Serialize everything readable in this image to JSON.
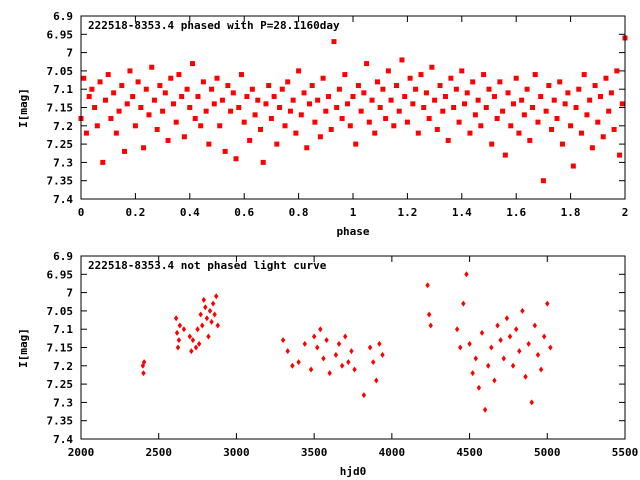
{
  "chart_data": [
    {
      "type": "scatter",
      "title": "222518-8353.4 phased with P=28.1160day",
      "xlabel": "phase",
      "ylabel": "I[mag]",
      "xlim": [
        0,
        2
      ],
      "ylim": [
        6.9,
        7.4
      ],
      "y_inverted": true,
      "xticks": [
        "0",
        "0.2",
        "0.4",
        "0.6",
        "0.8",
        "1",
        "1.2",
        "1.4",
        "1.6",
        "1.8",
        "2"
      ],
      "yticks": [
        "6.9",
        "6.95",
        "7",
        "7.05",
        "7.1",
        "7.15",
        "7.2",
        "7.25",
        "7.3",
        "7.35",
        "7.4"
      ],
      "marker": "filled-square",
      "color": "#ff0000",
      "series": [
        {
          "x": [
            0.0,
            0.01,
            0.02,
            0.03,
            0.04,
            0.05,
            0.06,
            0.07,
            0.08,
            0.09,
            0.1,
            0.11,
            0.12,
            0.13,
            0.14,
            0.15,
            0.16,
            0.17,
            0.18,
            0.19,
            0.2,
            0.21,
            0.22,
            0.23,
            0.24,
            0.25,
            0.26,
            0.27,
            0.28,
            0.29,
            0.3,
            0.31,
            0.32,
            0.33,
            0.34,
            0.35,
            0.36,
            0.37,
            0.38,
            0.39,
            0.4,
            0.41,
            0.42,
            0.43,
            0.44,
            0.45,
            0.46,
            0.47,
            0.48,
            0.49,
            0.5,
            0.51,
            0.52,
            0.53,
            0.54,
            0.55,
            0.56,
            0.57,
            0.58,
            0.59,
            0.6,
            0.61,
            0.62,
            0.63,
            0.64,
            0.65,
            0.66,
            0.67,
            0.68,
            0.69,
            0.7,
            0.71,
            0.72,
            0.73,
            0.74,
            0.75,
            0.76,
            0.77,
            0.78,
            0.79,
            0.8,
            0.81,
            0.82,
            0.83,
            0.84,
            0.85,
            0.86,
            0.87,
            0.88,
            0.89,
            0.9,
            0.91,
            0.92,
            0.93,
            0.94,
            0.95,
            0.96,
            0.97,
            0.98,
            0.99,
            1.0,
            1.01,
            1.02,
            1.03,
            1.04,
            1.05,
            1.06,
            1.07,
            1.08,
            1.09,
            1.1,
            1.11,
            1.12,
            1.13,
            1.14,
            1.15,
            1.16,
            1.17,
            1.18,
            1.19,
            1.2,
            1.21,
            1.22,
            1.23,
            1.24,
            1.25,
            1.26,
            1.27,
            1.28,
            1.29,
            1.3,
            1.31,
            1.32,
            1.33,
            1.34,
            1.35,
            1.36,
            1.37,
            1.38,
            1.39,
            1.4,
            1.41,
            1.42,
            1.43,
            1.44,
            1.45,
            1.46,
            1.47,
            1.48,
            1.49,
            1.5,
            1.51,
            1.52,
            1.53,
            1.54,
            1.55,
            1.56,
            1.57,
            1.58,
            1.59,
            1.6,
            1.61,
            1.62,
            1.63,
            1.64,
            1.65,
            1.66,
            1.67,
            1.68,
            1.69,
            1.7,
            1.71,
            1.72,
            1.73,
            1.74,
            1.75,
            1.76,
            1.77,
            1.78,
            1.79,
            1.8,
            1.81,
            1.82,
            1.83,
            1.84,
            1.85,
            1.86,
            1.87,
            1.88,
            1.89,
            1.9,
            1.91,
            1.92,
            1.93,
            1.94,
            1.95,
            1.96,
            1.97,
            1.98,
            1.99,
            2.0
          ],
          "y": [
            7.18,
            7.07,
            7.22,
            7.12,
            7.1,
            7.15,
            7.2,
            7.08,
            7.3,
            7.13,
            7.06,
            7.18,
            7.11,
            7.22,
            7.16,
            7.09,
            7.27,
            7.14,
            7.05,
            7.12,
            7.2,
            7.08,
            7.15,
            7.26,
            7.1,
            7.17,
            7.04,
            7.13,
            7.21,
            7.09,
            7.16,
            7.11,
            7.24,
            7.07,
            7.14,
            7.19,
            7.06,
            7.12,
            7.23,
            7.1,
            7.15,
            7.03,
            7.18,
            7.12,
            7.2,
            7.08,
            7.16,
            7.25,
            7.1,
            7.14,
            7.07,
            7.2,
            7.13,
            7.27,
            7.09,
            7.16,
            7.11,
            7.29,
            7.15,
            7.06,
            7.19,
            7.12,
            7.24,
            7.1,
            7.17,
            7.13,
            7.21,
            7.3,
            7.14,
            7.09,
            7.18,
            7.12,
            7.25,
            7.15,
            7.1,
            7.2,
            7.08,
            7.16,
            7.13,
            7.22,
            7.05,
            7.17,
            7.11,
            7.26,
            7.14,
            7.09,
            7.19,
            7.13,
            7.23,
            7.07,
            7.16,
            7.12,
            7.21,
            6.97,
            7.15,
            7.1,
            7.18,
            7.06,
            7.14,
            7.2,
            7.12,
            7.25,
            7.09,
            7.16,
            7.11,
            7.03,
            7.19,
            7.13,
            7.22,
            7.08,
            7.15,
            7.1,
            7.18,
            7.05,
            7.13,
            7.2,
            7.09,
            7.16,
            7.02,
            7.12,
            7.19,
            7.07,
            7.14,
            7.1,
            7.22,
            7.06,
            7.15,
            7.11,
            7.18,
            7.04,
            7.13,
            7.21,
            7.09,
            7.16,
            7.12,
            7.24,
            7.07,
            7.15,
            7.1,
            7.19,
            7.05,
            7.14,
            7.11,
            7.22,
            7.08,
            7.17,
            7.13,
            7.2,
            7.06,
            7.15,
            7.1,
            7.25,
            7.12,
            7.18,
            7.08,
            7.16,
            7.28,
            7.11,
            7.2,
            7.14,
            7.07,
            7.22,
            7.13,
            7.17,
            7.1,
            7.24,
            7.15,
            7.06,
            7.19,
            7.12,
            7.35,
            7.16,
            7.09,
            7.21,
            7.13,
            7.18,
            7.08,
            7.25,
            7.14,
            7.11,
            7.2,
            7.31,
            7.15,
            7.1,
            7.22,
            7.06,
            7.17,
            7.13,
            7.26,
            7.09,
            7.19,
            7.12,
            7.23,
            7.07,
            7.16,
            7.11,
            7.21,
            7.05,
            7.28,
            7.14,
            6.96
          ]
        }
      ]
    },
    {
      "type": "scatter",
      "title": "222518-8353.4 not phased light curve",
      "xlabel": "hjd0",
      "ylabel": "I[mag]",
      "xlim": [
        2000,
        5500
      ],
      "ylim": [
        6.9,
        7.4
      ],
      "y_inverted": true,
      "xticks": [
        "2000",
        "2500",
        "3000",
        "3500",
        "4000",
        "4500",
        "5000",
        "5500"
      ],
      "yticks": [
        "6.9",
        "6.95",
        "7",
        "7.05",
        "7.1",
        "7.15",
        "7.2",
        "7.25",
        "7.3",
        "7.35",
        "7.4"
      ],
      "marker": "filled-diamond",
      "color": "#ff0000",
      "series": [
        {
          "x": [
            2398,
            2402,
            2406,
            2612,
            2618,
            2624,
            2630,
            2636,
            2662,
            2700,
            2710,
            2720,
            2740,
            2750,
            2760,
            2770,
            2780,
            2790,
            2800,
            2810,
            2820,
            2830,
            2840,
            2850,
            2860,
            2870,
            2880,
            3300,
            3330,
            3360,
            3400,
            3440,
            3480,
            3500,
            3520,
            3540,
            3560,
            3580,
            3600,
            3640,
            3660,
            3680,
            3700,
            3720,
            3740,
            3760,
            3820,
            3860,
            3880,
            3900,
            3920,
            3940,
            4230,
            4240,
            4250,
            4420,
            4440,
            4460,
            4480,
            4500,
            4520,
            4540,
            4560,
            4580,
            4600,
            4620,
            4640,
            4660,
            4680,
            4700,
            4720,
            4740,
            4760,
            4780,
            4800,
            4820,
            4840,
            4860,
            4880,
            4900,
            4920,
            4940,
            4960,
            4980,
            5000,
            5020
          ],
          "y": [
            7.2,
            7.22,
            7.19,
            7.07,
            7.11,
            7.15,
            7.13,
            7.09,
            7.1,
            7.12,
            7.16,
            7.13,
            7.15,
            7.1,
            7.14,
            7.06,
            7.09,
            7.02,
            7.04,
            7.07,
            7.12,
            7.05,
            7.08,
            7.03,
            7.06,
            7.01,
            7.09,
            7.13,
            7.16,
            7.2,
            7.19,
            7.14,
            7.21,
            7.12,
            7.15,
            7.1,
            7.18,
            7.13,
            7.22,
            7.17,
            7.14,
            7.2,
            7.12,
            7.19,
            7.16,
            7.21,
            7.28,
            7.15,
            7.19,
            7.24,
            7.14,
            7.17,
            6.98,
            7.06,
            7.09,
            7.1,
            7.15,
            7.03,
            6.95,
            7.14,
            7.22,
            7.18,
            7.26,
            7.11,
            7.32,
            7.2,
            7.15,
            7.24,
            7.09,
            7.13,
            7.18,
            7.07,
            7.12,
            7.2,
            7.1,
            7.16,
            7.05,
            7.23,
            7.14,
            7.3,
            7.09,
            7.17,
            7.21,
            7.12,
            7.03,
            7.15
          ]
        }
      ]
    }
  ]
}
